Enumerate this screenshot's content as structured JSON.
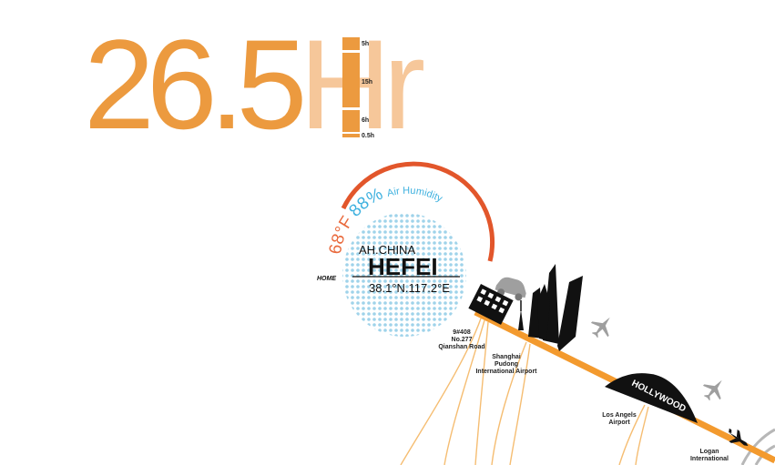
{
  "headline": {
    "number": "26.5",
    "unit": "Hr"
  },
  "time_scale": {
    "labels": [
      "5h",
      "15h",
      "6h",
      "0.5h"
    ],
    "values_h": [
      5,
      15,
      6,
      0.5
    ]
  },
  "weather": {
    "temperature": "68°F",
    "humidity": "88%",
    "humidity_label": "Air Humidity"
  },
  "location": {
    "region": "AH.CHINA",
    "city": "HEFEI",
    "coordinates": "38.1°N.117.2°E",
    "home_label": "HOME"
  },
  "places": {
    "home_address": [
      "9#408",
      "No.277",
      "Qianshan Road"
    ],
    "shanghai": [
      "Shanghai",
      "Pudong",
      "International Airport"
    ],
    "los_angeles": [
      "Los Angels",
      "Airport"
    ],
    "logan": [
      "Logan",
      "International"
    ]
  },
  "hollywood_sign": "HOLLYWOOD",
  "colors": {
    "orange": "#ec9a3f",
    "peach": "#f6c79a",
    "red_arc": "#e2562b",
    "temp": "#e96a3d",
    "humidity": "#3fb1df",
    "dots": "#9fd3ea",
    "route": "#f3a030"
  },
  "icons": [
    "car-icon",
    "airplane-icon",
    "building-icon",
    "skyline-icon",
    "hollywood-sign-icon"
  ]
}
